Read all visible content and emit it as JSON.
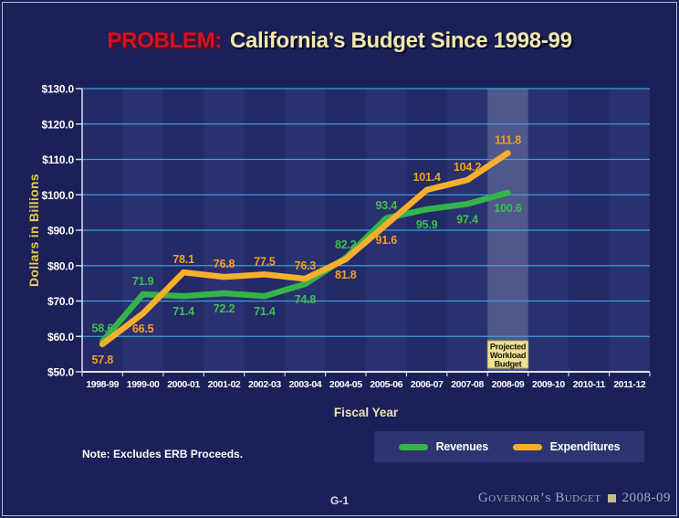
{
  "slide": {
    "title_problem": "PROBLEM:",
    "title_main": "California’s Budget Since 1998-99",
    "note": "Note: Excludes ERB Proceeds.",
    "page_number": "G-1",
    "footer_brand": "Governor’s Budget",
    "footer_year": "2008-09"
  },
  "colors": {
    "background": "#1b2058",
    "stripe_dark": "#232a66",
    "stripe_light": "#2a3170",
    "grid": "#3f9fdc",
    "axis": "#ccd6f0",
    "tick_label": "#ffffff",
    "highlight_band": "rgba(186,193,222,0.30)",
    "annotation_bg": "#efe193",
    "annotation_border": "#b5a755",
    "annotation_text": "#15150f",
    "legend_bg": "#2d346f",
    "title_red": "#d01226",
    "title_cream": "#f2e7ae",
    "ylabel_gold": "#e6c94f"
  },
  "chart_data": {
    "type": "line",
    "title": "California’s Budget Since 1998-99",
    "xlabel": "Fiscal Year",
    "ylabel": "Dollars in Billions",
    "ylim": [
      50,
      130
    ],
    "yticks": [
      50,
      60,
      70,
      80,
      90,
      100,
      110,
      120,
      130
    ],
    "ytick_labels": [
      "$50.0",
      "$60.0",
      "$70.0",
      "$80.0",
      "$90.0",
      "$100.0",
      "$110.0",
      "$120.0",
      "$130.0"
    ],
    "grid": true,
    "legend_position": "bottom-right",
    "categories": [
      "1998-99",
      "1999-00",
      "2000-01",
      "2001-02",
      "2002-03",
      "2003-04",
      "2004-05",
      "2005-06",
      "2006-07",
      "2007-08",
      "2008-09",
      "2009-10",
      "2010-11",
      "2011-12"
    ],
    "series": [
      {
        "name": "Revenues",
        "color": "#35b44a",
        "label_color": "#3fbf52",
        "values": [
          58.6,
          71.9,
          71.4,
          72.2,
          71.4,
          74.8,
          82.2,
          93.4,
          95.9,
          97.4,
          100.6
        ],
        "label_positions": [
          "above",
          "above",
          "below",
          "below",
          "below",
          "below",
          "above",
          "above",
          "below",
          "below",
          "below"
        ]
      },
      {
        "name": "Expenditures",
        "color": "#f8b02c",
        "label_color": "#f2a21d",
        "values": [
          57.8,
          66.5,
          78.1,
          76.8,
          77.5,
          76.3,
          81.8,
          91.6,
          101.4,
          104.2,
          111.8
        ],
        "label_positions": [
          "below",
          "below",
          "above",
          "above",
          "above",
          "above",
          "below",
          "below",
          "above",
          "above",
          "above"
        ]
      }
    ],
    "annotation": {
      "category": "2008-09",
      "lines": [
        "Projected",
        "Workload",
        "Budget"
      ]
    }
  }
}
